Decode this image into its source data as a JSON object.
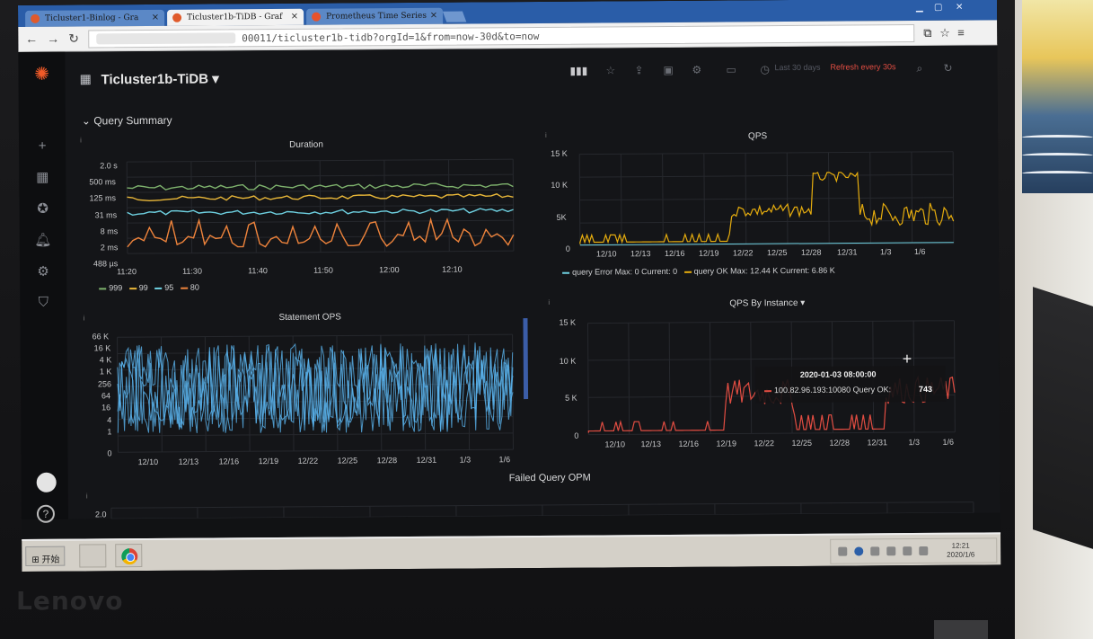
{
  "browser": {
    "tabs": [
      {
        "label": "Ticluster1-Binlog - Gra",
        "active": false
      },
      {
        "label": "Ticluster1b-TiDB - Graf",
        "active": true
      },
      {
        "label": "Prometheus Time Series",
        "active": false
      }
    ],
    "url": "00011/ticluster1b-tidb?orgId=1&from=now-30d&to=now"
  },
  "grafana": {
    "dashboard_title": "Ticluster1b-TiDB",
    "time_range": "Last 30 days",
    "refresh_label": "Refresh every 30s",
    "row_title": "Query Summary",
    "row2_panel_title": "Failed Query OPM",
    "row2_y_tick": "2.0"
  },
  "panels": {
    "duration": {
      "title": "Duration",
      "y_ticks": [
        "2.0 s",
        "500 ms",
        "125 ms",
        "31 ms",
        "8 ms",
        "2 ms",
        "488 µs"
      ],
      "x_ticks": [
        "11:20",
        "11:30",
        "11:40",
        "11:50",
        "12:00",
        "12:10"
      ],
      "legend": [
        "999",
        "99",
        "95",
        "80"
      ]
    },
    "qps": {
      "title": "QPS",
      "y_ticks": [
        "15 K",
        "10 K",
        "5K",
        "0"
      ],
      "x_ticks": [
        "12/10",
        "12/13",
        "12/16",
        "12/19",
        "12/22",
        "12/25",
        "12/28",
        "12/31",
        "1/3",
        "1/6"
      ],
      "legend_error": "query Error  Max: 0  Current: 0",
      "legend_ok": "query OK  Max: 12.44 K  Current: 6.86 K"
    },
    "statement_ops": {
      "title": "Statement OPS",
      "y_ticks": [
        "66 K",
        "16 K",
        "4 K",
        "1 K",
        "256",
        "64",
        "16",
        "4",
        "1",
        "0"
      ],
      "x_ticks": [
        "12/10",
        "12/13",
        "12/16",
        "12/19",
        "12/22",
        "12/25",
        "12/28",
        "12/31",
        "1/3",
        "1/6"
      ]
    },
    "qps_by_instance": {
      "title": "QPS By Instance ▾",
      "y_ticks": [
        "15 K",
        "10 K",
        "5 K",
        "0"
      ],
      "x_ticks": [
        "12/10",
        "12/13",
        "12/16",
        "12/19",
        "12/22",
        "12/25",
        "12/28",
        "12/31",
        "1/3",
        "1/6"
      ],
      "tooltip_time": "2020-01-03 08:00:00",
      "tooltip_series": "100.82.96.193:10080 Query OK:",
      "tooltip_value": "743"
    }
  },
  "taskbar": {
    "start_label": "开始",
    "clock_time": "12:21",
    "clock_date": "2020/1/6"
  },
  "device": {
    "brand": "Lenovo"
  },
  "colors": {
    "series_999": "#7eb26d",
    "series_99": "#eab839",
    "series_95": "#6ed0e0",
    "series_80": "#ef843c",
    "query_error": "#6ed0e0",
    "query_ok": "#e5ac0e",
    "instance": "#e24d42",
    "statement": "#5ab4ef",
    "grafana_orange": "#f05a28"
  }
}
